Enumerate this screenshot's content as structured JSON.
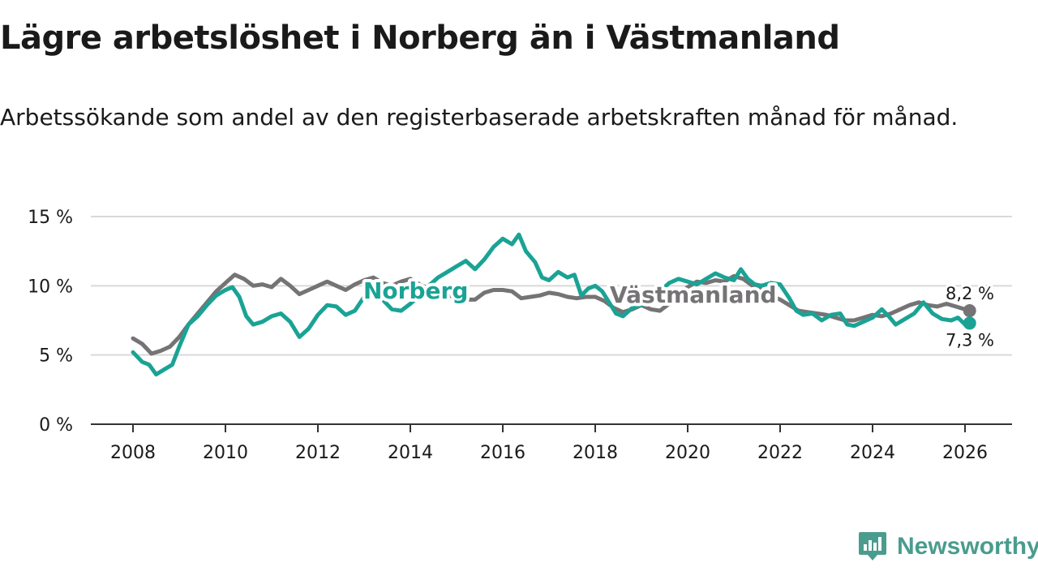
{
  "title": "Lägre arbetslöshet i Norberg än i Västmanland",
  "subtitle": "Arbetssökande som andel av den registerbaserade arbetskraften månad för månad.",
  "brand": {
    "name": "Newsworthy",
    "icon": "newsworthy-logo-icon",
    "color": "#4a9c8e"
  },
  "chart_data": {
    "type": "line",
    "title": "Lägre arbetslöshet i Norberg än i Västmanland",
    "subtitle": "Arbetssökande som andel av den registerbaserade arbetskraften månad för månad.",
    "xlabel": "",
    "ylabel": "",
    "xlim": [
      2007.5,
      2027
    ],
    "ylim": [
      0,
      15
    ],
    "x_ticks": [
      2008,
      2010,
      2012,
      2014,
      2016,
      2018,
      2020,
      2022,
      2024,
      2026
    ],
    "x_tick_labels": [
      "2008",
      "2010",
      "2012",
      "2014",
      "2016",
      "2018",
      "2020",
      "2022",
      "2024",
      "2026"
    ],
    "y_ticks": [
      0,
      5,
      10,
      15
    ],
    "y_tick_labels": [
      "0 %",
      "5 %",
      "10 %",
      "15 %"
    ],
    "grid": true,
    "legend": "inline labels",
    "series": [
      {
        "name": "Västmanland",
        "color": "#757375",
        "end_label": "8,2 %",
        "end_value": 8.2,
        "points": [
          [
            2008.0,
            6.2
          ],
          [
            2008.2,
            5.8
          ],
          [
            2008.4,
            5.1
          ],
          [
            2008.6,
            5.3
          ],
          [
            2008.8,
            5.6
          ],
          [
            2009.0,
            6.3
          ],
          [
            2009.2,
            7.2
          ],
          [
            2009.4,
            8.0
          ],
          [
            2009.6,
            8.8
          ],
          [
            2009.8,
            9.6
          ],
          [
            2010.0,
            10.2
          ],
          [
            2010.2,
            10.8
          ],
          [
            2010.4,
            10.5
          ],
          [
            2010.6,
            10.0
          ],
          [
            2010.8,
            10.1
          ],
          [
            2011.0,
            9.9
          ],
          [
            2011.2,
            10.5
          ],
          [
            2011.4,
            10.0
          ],
          [
            2011.6,
            9.4
          ],
          [
            2011.8,
            9.7
          ],
          [
            2012.0,
            10.0
          ],
          [
            2012.2,
            10.3
          ],
          [
            2012.4,
            10.0
          ],
          [
            2012.6,
            9.7
          ],
          [
            2012.8,
            10.1
          ],
          [
            2013.0,
            10.4
          ],
          [
            2013.2,
            10.6
          ],
          [
            2013.4,
            10.2
          ],
          [
            2013.6,
            10.0
          ],
          [
            2013.8,
            10.3
          ],
          [
            2014.0,
            10.5
          ],
          [
            2014.2,
            10.1
          ],
          [
            2014.4,
            9.8
          ],
          [
            2014.6,
            9.6
          ],
          [
            2014.8,
            9.3
          ],
          [
            2015.0,
            9.2
          ],
          [
            2015.2,
            9.0
          ],
          [
            2015.4,
            9.0
          ],
          [
            2015.6,
            9.5
          ],
          [
            2015.8,
            9.7
          ],
          [
            2016.0,
            9.7
          ],
          [
            2016.2,
            9.6
          ],
          [
            2016.4,
            9.1
          ],
          [
            2016.6,
            9.2
          ],
          [
            2016.8,
            9.3
          ],
          [
            2017.0,
            9.5
          ],
          [
            2017.2,
            9.4
          ],
          [
            2017.4,
            9.2
          ],
          [
            2017.6,
            9.1
          ],
          [
            2017.8,
            9.2
          ],
          [
            2018.0,
            9.2
          ],
          [
            2018.2,
            8.9
          ],
          [
            2018.4,
            8.4
          ],
          [
            2018.6,
            8.1
          ],
          [
            2018.8,
            8.3
          ],
          [
            2019.0,
            8.6
          ],
          [
            2019.2,
            8.3
          ],
          [
            2019.4,
            8.2
          ],
          [
            2019.6,
            8.7
          ],
          [
            2019.8,
            9.4
          ],
          [
            2020.0,
            9.9
          ],
          [
            2020.2,
            10.3
          ],
          [
            2020.4,
            10.2
          ],
          [
            2020.6,
            10.4
          ],
          [
            2020.8,
            10.3
          ],
          [
            2021.0,
            10.7
          ],
          [
            2021.2,
            10.5
          ],
          [
            2021.4,
            10.0
          ],
          [
            2021.6,
            9.7
          ],
          [
            2021.8,
            9.3
          ],
          [
            2022.0,
            9.0
          ],
          [
            2022.2,
            8.6
          ],
          [
            2022.4,
            8.2
          ],
          [
            2022.6,
            8.1
          ],
          [
            2022.8,
            8.0
          ],
          [
            2023.0,
            7.9
          ],
          [
            2023.2,
            7.7
          ],
          [
            2023.4,
            7.5
          ],
          [
            2023.6,
            7.5
          ],
          [
            2023.8,
            7.7
          ],
          [
            2024.0,
            7.9
          ],
          [
            2024.2,
            7.8
          ],
          [
            2024.4,
            8.0
          ],
          [
            2024.6,
            8.3
          ],
          [
            2024.8,
            8.6
          ],
          [
            2025.0,
            8.8
          ],
          [
            2025.2,
            8.6
          ],
          [
            2025.4,
            8.5
          ],
          [
            2025.6,
            8.7
          ],
          [
            2025.8,
            8.5
          ],
          [
            2026.1,
            8.2
          ]
        ]
      },
      {
        "name": "Norberg",
        "color": "#1aa395",
        "end_label": "7,3 %",
        "end_value": 7.3,
        "points": [
          [
            2008.0,
            5.2
          ],
          [
            2008.2,
            4.5
          ],
          [
            2008.35,
            4.3
          ],
          [
            2008.5,
            3.6
          ],
          [
            2008.7,
            4.0
          ],
          [
            2008.85,
            4.3
          ],
          [
            2009.0,
            5.6
          ],
          [
            2009.2,
            7.2
          ],
          [
            2009.4,
            7.8
          ],
          [
            2009.6,
            8.6
          ],
          [
            2009.8,
            9.3
          ],
          [
            2010.0,
            9.7
          ],
          [
            2010.15,
            9.9
          ],
          [
            2010.3,
            9.2
          ],
          [
            2010.45,
            7.8
          ],
          [
            2010.6,
            7.2
          ],
          [
            2010.8,
            7.4
          ],
          [
            2011.0,
            7.8
          ],
          [
            2011.2,
            8.0
          ],
          [
            2011.4,
            7.4
          ],
          [
            2011.6,
            6.3
          ],
          [
            2011.8,
            6.9
          ],
          [
            2012.0,
            7.9
          ],
          [
            2012.2,
            8.6
          ],
          [
            2012.4,
            8.5
          ],
          [
            2012.6,
            7.9
          ],
          [
            2012.8,
            8.2
          ],
          [
            2013.0,
            9.2
          ],
          [
            2013.2,
            9.6
          ],
          [
            2013.4,
            9.0
          ],
          [
            2013.6,
            8.3
          ],
          [
            2013.8,
            8.2
          ],
          [
            2014.0,
            8.7
          ],
          [
            2014.2,
            9.3
          ],
          [
            2014.4,
            10.0
          ],
          [
            2014.6,
            10.6
          ],
          [
            2014.8,
            11.0
          ],
          [
            2015.0,
            11.4
          ],
          [
            2015.2,
            11.8
          ],
          [
            2015.4,
            11.2
          ],
          [
            2015.6,
            11.9
          ],
          [
            2015.8,
            12.8
          ],
          [
            2016.0,
            13.4
          ],
          [
            2016.2,
            13.0
          ],
          [
            2016.35,
            13.7
          ],
          [
            2016.5,
            12.5
          ],
          [
            2016.7,
            11.7
          ],
          [
            2016.85,
            10.6
          ],
          [
            2017.0,
            10.4
          ],
          [
            2017.2,
            11.0
          ],
          [
            2017.4,
            10.6
          ],
          [
            2017.55,
            10.8
          ],
          [
            2017.7,
            9.3
          ],
          [
            2017.85,
            9.8
          ],
          [
            2018.0,
            10.0
          ],
          [
            2018.15,
            9.6
          ],
          [
            2018.3,
            8.8
          ],
          [
            2018.45,
            8.0
          ],
          [
            2018.6,
            7.8
          ],
          [
            2018.8,
            8.4
          ],
          [
            2019.0,
            8.6
          ],
          [
            2019.2,
            9.0
          ],
          [
            2019.4,
            9.6
          ],
          [
            2019.6,
            10.2
          ],
          [
            2019.8,
            10.5
          ],
          [
            2020.0,
            10.3
          ],
          [
            2020.2,
            10.1
          ],
          [
            2020.4,
            10.5
          ],
          [
            2020.6,
            10.9
          ],
          [
            2020.8,
            10.6
          ],
          [
            2021.0,
            10.4
          ],
          [
            2021.15,
            11.2
          ],
          [
            2021.3,
            10.5
          ],
          [
            2021.45,
            10.1
          ],
          [
            2021.6,
            10.0
          ],
          [
            2021.8,
            10.2
          ],
          [
            2022.0,
            10.1
          ],
          [
            2022.2,
            9.1
          ],
          [
            2022.35,
            8.2
          ],
          [
            2022.5,
            7.9
          ],
          [
            2022.7,
            8.0
          ],
          [
            2022.9,
            7.5
          ],
          [
            2023.1,
            7.9
          ],
          [
            2023.3,
            8.0
          ],
          [
            2023.45,
            7.2
          ],
          [
            2023.6,
            7.1
          ],
          [
            2023.8,
            7.4
          ],
          [
            2024.0,
            7.7
          ],
          [
            2024.2,
            8.3
          ],
          [
            2024.35,
            7.8
          ],
          [
            2024.5,
            7.2
          ],
          [
            2024.7,
            7.6
          ],
          [
            2024.9,
            8.0
          ],
          [
            2025.1,
            8.8
          ],
          [
            2025.3,
            8.0
          ],
          [
            2025.5,
            7.6
          ],
          [
            2025.7,
            7.5
          ],
          [
            2025.85,
            7.7
          ],
          [
            2026.0,
            7.2
          ],
          [
            2026.1,
            7.3
          ]
        ]
      }
    ]
  }
}
